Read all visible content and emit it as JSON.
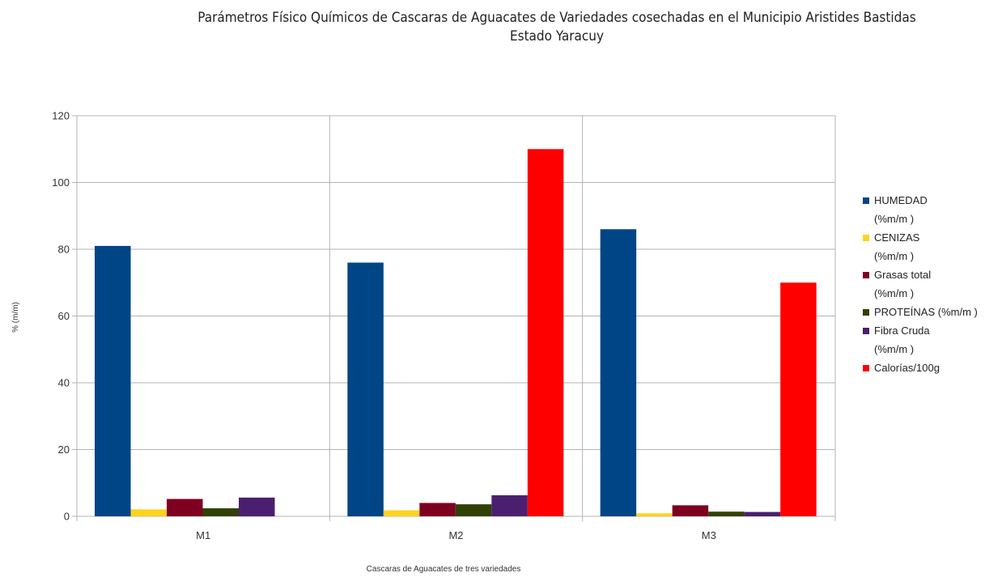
{
  "chart_data": {
    "type": "bar",
    "title_lines": [
      "Parámetros Físico Químicos de Cascaras de Aguacates de Variedades cosechadas en el Municipio Aristides Bastidas",
      "Estado Yaracuy"
    ],
    "xlabel": "Cascaras de Aguacates de tres variedades",
    "ylabel": "% (m/m)",
    "ylim": [
      0,
      120
    ],
    "yticks": [
      0,
      20,
      40,
      60,
      80,
      100,
      120
    ],
    "grid": true,
    "legend_position": "right",
    "categories": [
      "M1",
      "M2",
      "M3"
    ],
    "series": [
      {
        "name": "HUMEDAD (%m/m )",
        "legend_lines": [
          "HUMEDAD",
          "(%m/m )"
        ],
        "color": "#004586",
        "values": [
          81,
          76,
          86
        ]
      },
      {
        "name": "CENIZAS (%m/m )",
        "legend_lines": [
          "CENIZAS",
          "(%m/m )"
        ],
        "color": "#ffd320",
        "values": [
          2.1,
          1.8,
          0.9
        ]
      },
      {
        "name": "Grasas total (%m/m )",
        "legend_lines": [
          "Grasas total",
          "(%m/m )"
        ],
        "color": "#7e0021",
        "values": [
          5.2,
          4,
          3.3
        ]
      },
      {
        "name": "PROTEÍNAS (%m/m )",
        "legend_lines": [
          "PROTEÍNAS (%m/m )"
        ],
        "color": "#314004",
        "values": [
          2.4,
          3.6,
          1.4
        ]
      },
      {
        "name": "Fibra Cruda (%m/m )",
        "legend_lines": [
          "Fibra Cruda",
          "(%m/m )"
        ],
        "color": "#4b1f6f",
        "values": [
          5.6,
          6.3,
          1.3
        ]
      },
      {
        "name": "Calorías/100g",
        "legend_lines": [
          "Calorías/100g"
        ],
        "color": "#ff0000",
        "values": [
          0,
          110,
          70
        ]
      }
    ]
  }
}
